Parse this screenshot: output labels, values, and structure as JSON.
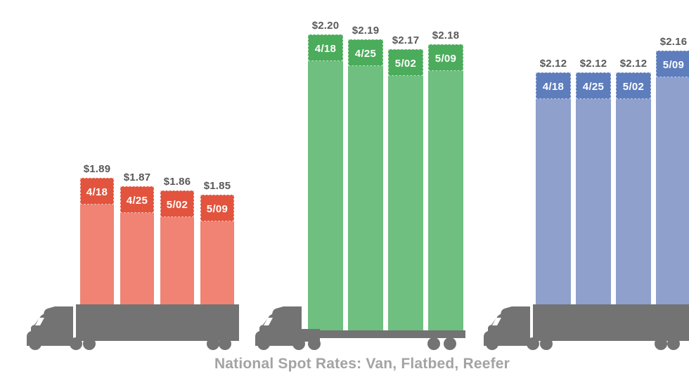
{
  "title": "National Spot Rates: Van, Flatbed, Reefer",
  "colors": {
    "truck_gray": "#737373",
    "value_label_gray": "#595959",
    "date_label_white": "#FFFFFF",
    "title_gray": "#A3A3A3",
    "background": "#FFFFFF"
  },
  "chart_data": {
    "type": "bar",
    "subtype": "pictorial bar groups stacked on truck silhouettes",
    "title": "National Spot Rates: Van, Flatbed, Reefer",
    "categories": [
      "4/18",
      "4/25",
      "5/02",
      "5/09"
    ],
    "value_prefix": "$",
    "value_decimals": 2,
    "axes": "none",
    "grid": false,
    "legend": "none",
    "series": [
      {
        "name": "Van",
        "truck": "van",
        "cap_color": "#E2543E",
        "body_color": "#F08374",
        "values": [
          1.89,
          1.87,
          1.86,
          1.85
        ]
      },
      {
        "name": "Flatbed",
        "truck": "flatbed",
        "cap_color": "#4BAC5B",
        "body_color": "#6FBF80",
        "values": [
          2.2,
          2.19,
          2.17,
          2.18
        ]
      },
      {
        "name": "Reefer",
        "truck": "reefer",
        "cap_color": "#5E7DBD",
        "body_color": "#8FA0CC",
        "values": [
          2.12,
          2.12,
          2.12,
          2.16
        ]
      }
    ]
  }
}
